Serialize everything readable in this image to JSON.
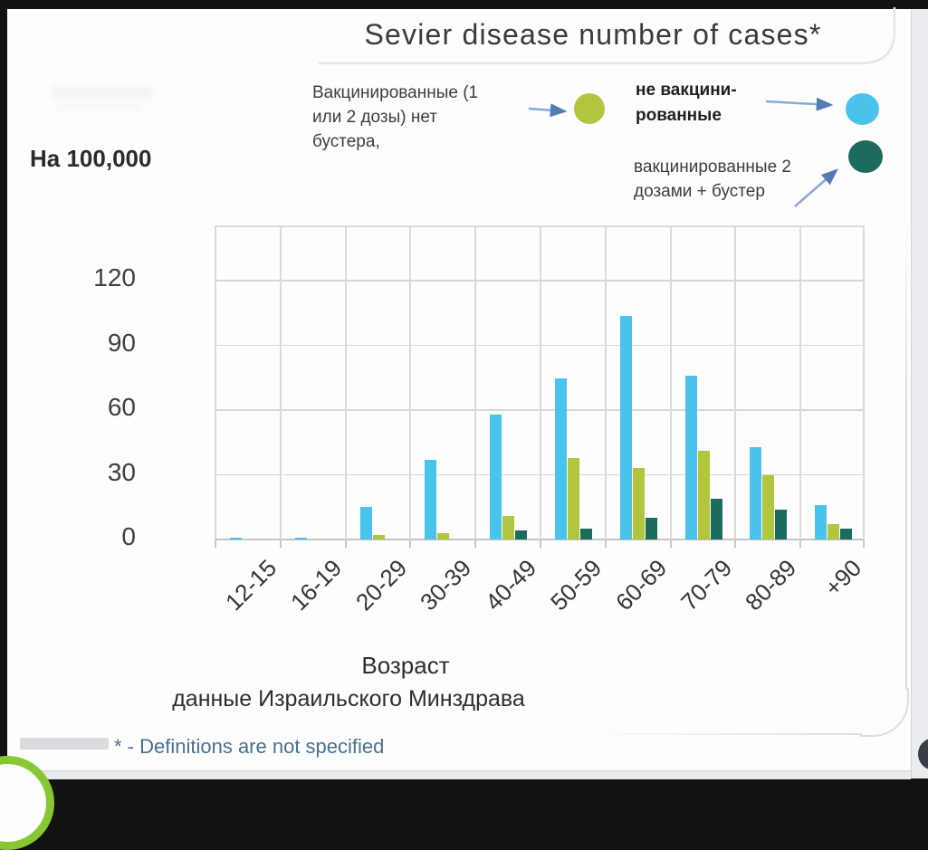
{
  "title": "Sevier disease number of cases*",
  "y_unit_label": "На 100,000",
  "legend": {
    "no_booster_label": "Вакцинированные (1 или 2 дозы) нет бустера,",
    "unvaccinated_label": "не вакцини-рованные",
    "boosted_label": "вакцинированные 2 дозами + бустер"
  },
  "xaxis_title": "Возраст",
  "source_line": "данные Израильского Минздрава",
  "footnote": "* - Definitions are not specified",
  "colors": {
    "unvaccinated": "#49c3ec",
    "no_booster": "#b3c43e",
    "boosted": "#1c6b5f",
    "arrow": "#88abd6",
    "grid": "#d6d6d6"
  },
  "chart_data": {
    "type": "bar",
    "title": "Sevier disease number of cases*",
    "ylabel": "На 100,000",
    "xlabel": "Возраст",
    "source": "данные Израильского Минздрава",
    "footnote": "* - Definitions are not specified",
    "categories": [
      "12-15",
      "16-19",
      "20-29",
      "30-39",
      "40-49",
      "50-59",
      "60-69",
      "70-79",
      "80-89",
      "+90"
    ],
    "series": [
      {
        "name": "не вакцинированные",
        "color": "#49c3ec",
        "values": [
          1,
          1,
          15,
          37,
          58,
          75,
          104,
          76,
          43,
          16
        ]
      },
      {
        "name": "Вакцинированные (1 или 2 дозы) нет бустера",
        "color": "#b3c43e",
        "values": [
          0,
          0,
          2,
          3,
          11,
          38,
          33,
          41,
          30,
          7
        ]
      },
      {
        "name": "вакцинированные 2 дозами + бустер",
        "color": "#1c6b5f",
        "values": [
          0,
          0,
          0,
          0,
          4,
          5,
          10,
          19,
          14,
          5
        ]
      }
    ],
    "y_ticks": [
      0,
      30,
      60,
      90,
      120
    ],
    "ylim": [
      0,
      145
    ],
    "grid": true,
    "legend_position": "top"
  }
}
